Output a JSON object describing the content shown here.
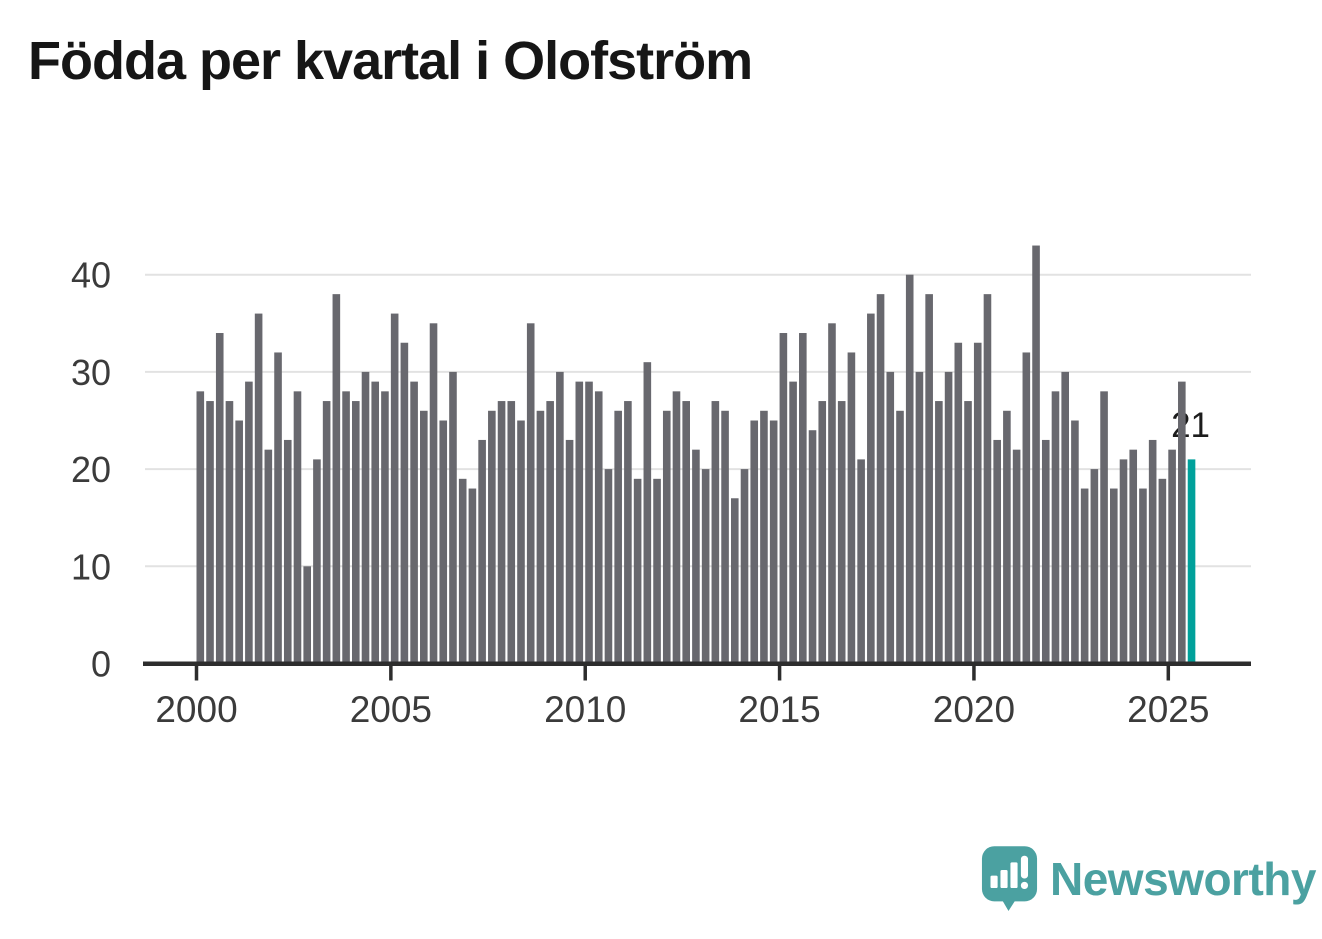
{
  "title": "Födda per kvartal i Olofström",
  "chart_data": {
    "type": "bar",
    "x_start": {
      "year": 2000,
      "quarter": 1
    },
    "x_end": {
      "year": 2025,
      "quarter": 3
    },
    "values": [
      28,
      27,
      34,
      27,
      25,
      29,
      36,
      22,
      32,
      23,
      28,
      10,
      21,
      27,
      38,
      28,
      27,
      30,
      29,
      28,
      36,
      33,
      29,
      26,
      35,
      25,
      30,
      19,
      18,
      23,
      26,
      27,
      27,
      25,
      35,
      26,
      27,
      30,
      23,
      29,
      29,
      28,
      20,
      26,
      27,
      19,
      31,
      19,
      26,
      28,
      27,
      22,
      20,
      27,
      26,
      17,
      20,
      25,
      26,
      25,
      34,
      29,
      34,
      24,
      27,
      35,
      27,
      32,
      21,
      36,
      38,
      30,
      26,
      40,
      30,
      38,
      27,
      30,
      33,
      27,
      33,
      38,
      23,
      26,
      22,
      32,
      43,
      23,
      28,
      30,
      25,
      18,
      20,
      28,
      18,
      21,
      22,
      18,
      23,
      19,
      22,
      29,
      21
    ],
    "x_tick_labels": [
      "2000",
      "2005",
      "2010",
      "2015",
      "2020",
      "2025"
    ],
    "y_tick_values": [
      0,
      10,
      20,
      30,
      40
    ],
    "ylim": [
      0,
      45
    ],
    "grid": "horizontal",
    "legend": "none",
    "bar_color": "#68686e",
    "highlight_color": "#00a19b",
    "highlight_index": 102,
    "annotation": {
      "text": "21",
      "target": "2025 Q3"
    }
  },
  "annotation": {
    "value": "21"
  },
  "logo": {
    "text": "Newsworthy",
    "accent_color": "#4ba1a1",
    "icon": "speech-bubble-bar-chart-icon"
  }
}
